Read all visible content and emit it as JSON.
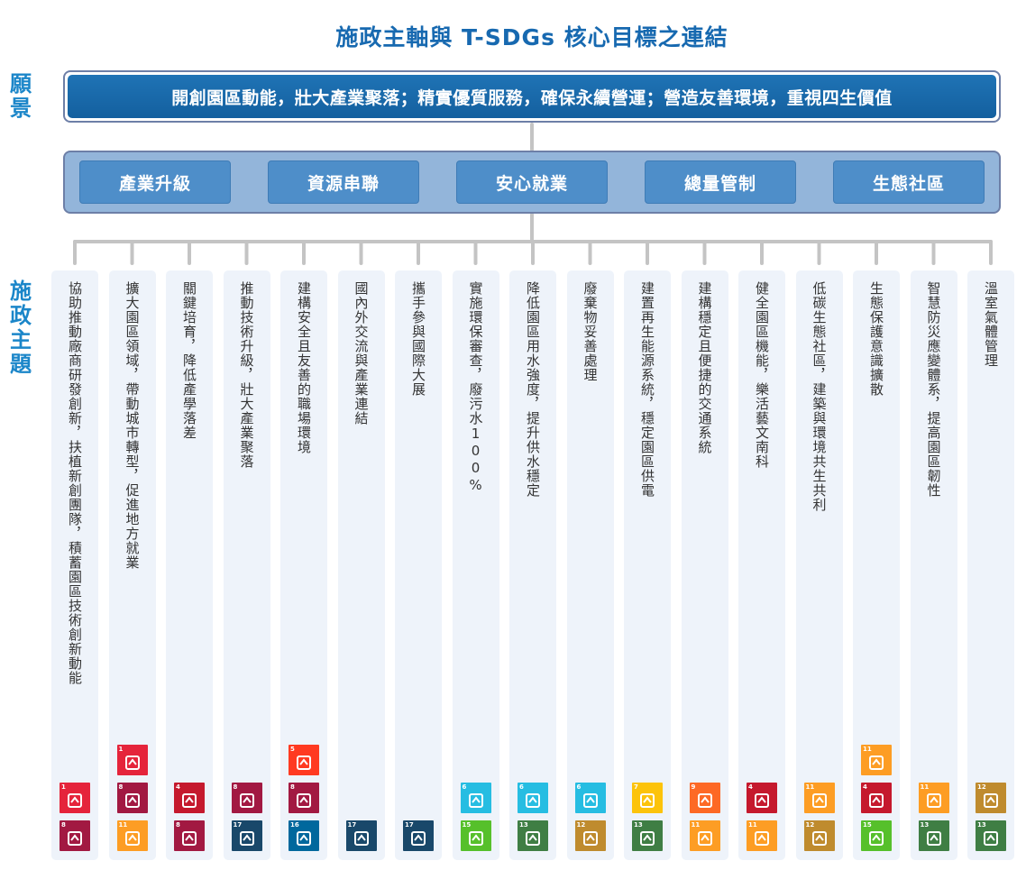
{
  "title": "施政主軸與 T-SDGs 核心目標之連結",
  "side_labels": {
    "vision": "願\n景",
    "themes": "施\n政\n主\n題"
  },
  "vision": "開創園區動能，壯大產業聚落；精實優質服務，確保永續營運；營造友善環境，重視四生價值",
  "axes": [
    "產業升級",
    "資源串聯",
    "安心就業",
    "總量管制",
    "生態社區"
  ],
  "colors": {
    "title": "#1769b0",
    "vision_fill": "#1769b0",
    "axes_band": "#93b5da",
    "axis_button": "#4e8ec9",
    "column_bg": "#eef3fa",
    "connector": "#c4c4c4"
  },
  "sdg_colors": {
    "1": "#e5243b",
    "4": "#c5192d",
    "5": "#ff3a21",
    "6": "#26bde2",
    "7": "#fcc30b",
    "8": "#a21942",
    "9": "#fd6925",
    "11": "#fd9d24",
    "12": "#bf8b2e",
    "13": "#3f7e44",
    "15": "#56c02b",
    "16": "#00689d",
    "17": "#19486a"
  },
  "themes": [
    {
      "text": "協助推動廠商研發創新，扶植新創團隊，積蓄園區技術創新動能",
      "sdgs": [
        [],
        [
          1
        ],
        [
          8
        ]
      ]
    },
    {
      "text": "擴大園區領域，帶動城市轉型，促進地方就業",
      "sdgs": [
        [
          1
        ],
        [
          8
        ],
        [
          11
        ]
      ]
    },
    {
      "text": "關鍵培育，降低產學落差",
      "sdgs": [
        [],
        [
          4
        ],
        [
          8
        ]
      ]
    },
    {
      "text": "推動技術升級，壯大產業聚落",
      "sdgs": [
        [],
        [
          8
        ],
        [
          17
        ]
      ]
    },
    {
      "text": "建構安全且友善的職場環境",
      "sdgs": [
        [
          5
        ],
        [
          8
        ],
        [
          16
        ]
      ]
    },
    {
      "text": "國內外交流與產業連結",
      "sdgs": [
        [],
        [],
        [
          17
        ]
      ]
    },
    {
      "text": "攜手參與國際大展",
      "sdgs": [
        [],
        [],
        [
          17
        ]
      ]
    },
    {
      "text": "實施環保審查，廢污水100%",
      "sdgs": [
        [],
        [
          6
        ],
        [
          15
        ]
      ]
    },
    {
      "text": "降低園區用水強度，提升供水穩定",
      "sdgs": [
        [],
        [
          6
        ],
        [
          13
        ]
      ]
    },
    {
      "text": "廢棄物妥善處理",
      "sdgs": [
        [],
        [
          6
        ],
        [
          12
        ]
      ]
    },
    {
      "text": "建置再生能源系統，穩定園區供電",
      "sdgs": [
        [],
        [
          7
        ],
        [
          13
        ]
      ]
    },
    {
      "text": "建構穩定且便捷的交通系統",
      "sdgs": [
        [],
        [
          9
        ],
        [
          11
        ]
      ]
    },
    {
      "text": "健全園區機能，樂活藝文南科",
      "sdgs": [
        [],
        [
          4
        ],
        [
          11
        ]
      ]
    },
    {
      "text": "低碳生態社區，建築與環境共生共利",
      "sdgs": [
        [],
        [
          11
        ],
        [
          12
        ]
      ]
    },
    {
      "text": "生態保護意識擴散",
      "sdgs": [
        [
          11
        ],
        [
          4
        ],
        [
          15
        ]
      ]
    },
    {
      "text": "智慧防災應變體系，提高園區韌性",
      "sdgs": [
        [],
        [
          11
        ],
        [
          13
        ]
      ]
    },
    {
      "text": "溫室氣體管理",
      "sdgs": [
        [],
        [
          12
        ],
        [
          13
        ]
      ]
    }
  ]
}
